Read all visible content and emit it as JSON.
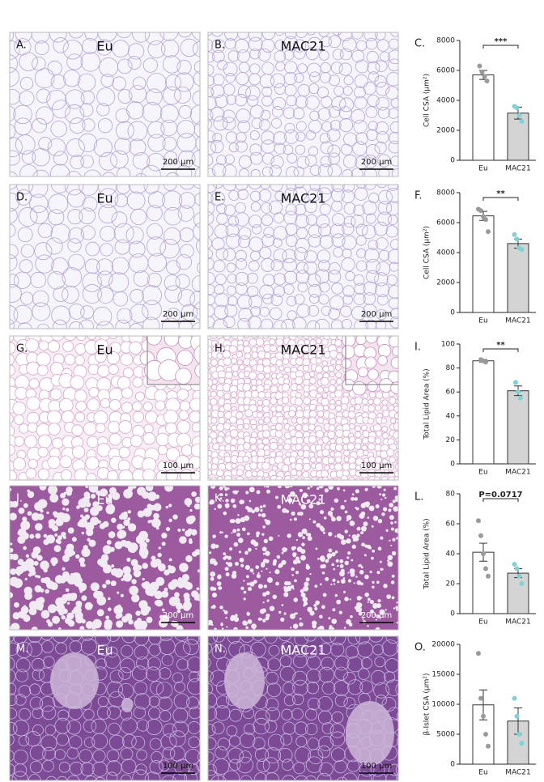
{
  "panels": [
    {
      "letter": "A.",
      "label": "Eu",
      "scale": "200 µm"
    },
    {
      "letter": "B.",
      "label": "MAC21",
      "scale": "200 µm"
    },
    {
      "letter": "D.",
      "label": "Eu",
      "scale": "200 µm"
    },
    {
      "letter": "E.",
      "label": "MAC21",
      "scale": "200 µm"
    },
    {
      "letter": "G.",
      "label": "Eu",
      "scale": "100 µm"
    },
    {
      "letter": "H.",
      "label": "MAC21",
      "scale": "100 µm"
    },
    {
      "letter": "J.",
      "label": "Eu",
      "scale": "200 µm"
    },
    {
      "letter": "K.",
      "label": "MAC21",
      "scale": "200 µm"
    },
    {
      "letter": "M.",
      "label": "Eu",
      "scale": "100 µm"
    },
    {
      "letter": "N.",
      "label": "MAC21",
      "scale": "100 µm"
    }
  ],
  "chart_data": [
    {
      "type": "bar",
      "panel": "C.",
      "ylabel": "Cell CSA (µm²)",
      "categories": [
        "Eu",
        "MAC21"
      ],
      "values": [
        5700,
        3150
      ],
      "errors": [
        300,
        400
      ],
      "points": [
        [
          6300,
          5900,
          5600,
          5300
        ],
        [
          3600,
          3500,
          3000,
          2600
        ]
      ],
      "colors": [
        "#ffffff",
        "#d4d4d4"
      ],
      "point_colors": [
        "#9a9a9a",
        "#7fd3d6"
      ],
      "ylim": [
        0,
        8000
      ],
      "yticks": [
        0,
        2000,
        4000,
        6000,
        8000
      ],
      "annotation": "***"
    },
    {
      "type": "bar",
      "panel": "F.",
      "ylabel": "Cell CSA (µm²)",
      "categories": [
        "Eu",
        "MAC21"
      ],
      "values": [
        6450,
        4600
      ],
      "errors": [
        300,
        300
      ],
      "points": [
        [
          6900,
          6800,
          6400,
          6200,
          5400
        ],
        [
          5200,
          4900,
          4300,
          4200
        ]
      ],
      "colors": [
        "#ffffff",
        "#d4d4d4"
      ],
      "point_colors": [
        "#9a9a9a",
        "#7fd3d6"
      ],
      "ylim": [
        0,
        8000
      ],
      "yticks": [
        0,
        2000,
        4000,
        6000,
        8000
      ],
      "annotation": "**"
    },
    {
      "type": "bar",
      "panel": "I.",
      "ylabel": "Total Lipid Area (%)",
      "categories": [
        "Eu",
        "MAC21"
      ],
      "values": [
        86,
        61
      ],
      "errors": [
        1,
        4
      ],
      "points": [
        [
          87,
          86,
          85
        ],
        [
          68,
          60,
          55
        ]
      ],
      "colors": [
        "#ffffff",
        "#d4d4d4"
      ],
      "point_colors": [
        "#9a9a9a",
        "#7fd3d6"
      ],
      "ylim": [
        0,
        100
      ],
      "yticks": [
        0,
        20,
        40,
        60,
        80,
        100
      ],
      "annotation": "**"
    },
    {
      "type": "bar",
      "panel": "L.",
      "ylabel": "Total Lipid Area (%)",
      "categories": [
        "Eu",
        "MAC21"
      ],
      "values": [
        41,
        27
      ],
      "errors": [
        6,
        3
      ],
      "points": [
        [
          62,
          52,
          40,
          30,
          25
        ],
        [
          33,
          30,
          25,
          20
        ]
      ],
      "colors": [
        "#ffffff",
        "#d4d4d4"
      ],
      "point_colors": [
        "#9a9a9a",
        "#7fd3d6"
      ],
      "ylim": [
        0,
        80
      ],
      "yticks": [
        0,
        20,
        40,
        60,
        80
      ],
      "annotation": "P=0.0717"
    },
    {
      "type": "bar",
      "panel": "O.",
      "ylabel": "β-Islet CSA (µm²)",
      "categories": [
        "Eu",
        "MAC21"
      ],
      "values": [
        9900,
        7200
      ],
      "errors": [
        2500,
        2200
      ],
      "points": [
        [
          18500,
          11000,
          8000,
          5000,
          3000
        ],
        [
          11000,
          8000,
          5000,
          3500
        ]
      ],
      "colors": [
        "#ffffff",
        "#d4d4d4"
      ],
      "point_colors": [
        "#9a9a9a",
        "#7fd3d6"
      ],
      "ylim": [
        0,
        20000
      ],
      "yticks": [
        0,
        5000,
        10000,
        15000,
        20000
      ]
    }
  ]
}
